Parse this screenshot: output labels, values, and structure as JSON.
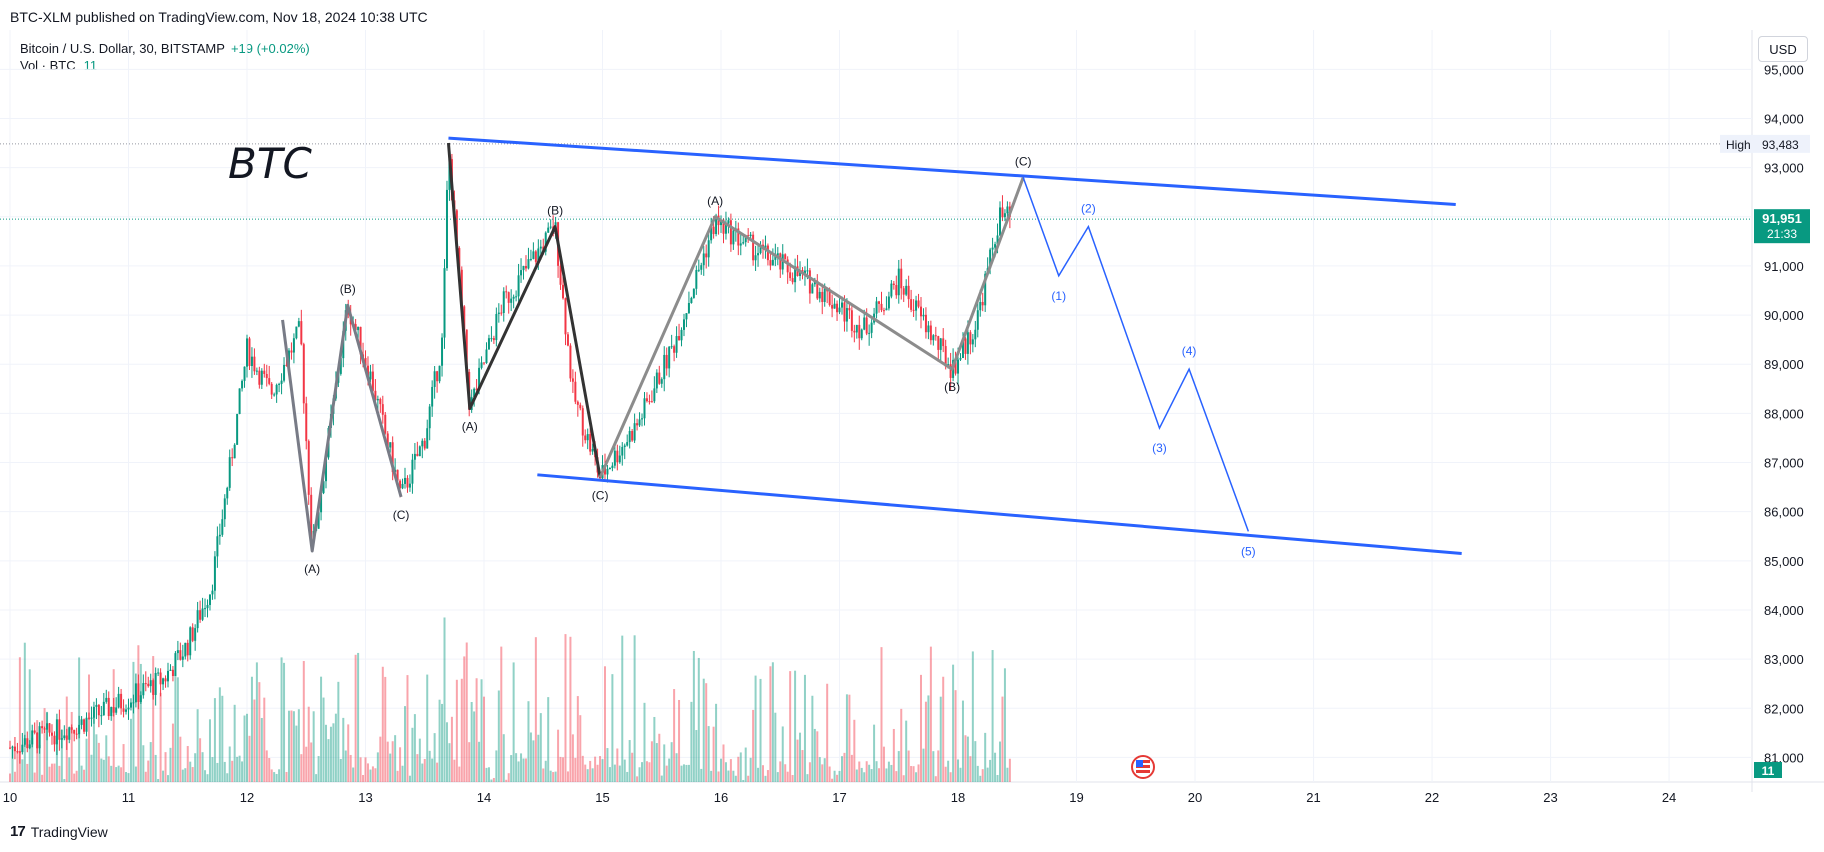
{
  "header": {
    "published": "BTC-XLM published on TradingView.com, Nov 18, 2024 10:38 UTC"
  },
  "legend": {
    "symbol": "Bitcoin / U.S. Dollar, 30, BITSTAMP",
    "change": "+19 (+0.02%)",
    "volume_label": "Vol · BTC",
    "volume_value": "11"
  },
  "currency_button": "USD",
  "footer": {
    "brand": "TradingView",
    "logo": "17"
  },
  "markers": {
    "high_label": "High",
    "high_value": "93,483",
    "last_price": "91,951",
    "countdown": "21:33",
    "volume_badge": "11"
  },
  "annotation_text": "BTC",
  "colors": {
    "bull": "#089981",
    "bear": "#f23645",
    "channel": "#2962ff",
    "wave": "#131722",
    "projection": "#2962ff"
  },
  "chart_data": {
    "type": "candlestick",
    "title": "",
    "x_tick_labels": [
      "10",
      "11",
      "12",
      "13",
      "14",
      "15",
      "16",
      "17",
      "18",
      "19",
      "20",
      "21",
      "22",
      "23",
      "24"
    ],
    "y_tick_labels": [
      "95,000",
      "94,000",
      "93,000",
      "92,000",
      "91,000",
      "90,000",
      "89,000",
      "88,000",
      "87,000",
      "86,000",
      "85,000",
      "84,000",
      "83,000",
      "82,000",
      "81,000"
    ],
    "ylim": [
      80500,
      95800
    ],
    "xlim": [
      10,
      24.7
    ],
    "grid": true,
    "price_path": [
      [
        10.0,
        81200
      ],
      [
        10.6,
        81700
      ],
      [
        11.0,
        82200
      ],
      [
        11.3,
        82600
      ],
      [
        11.5,
        83300
      ],
      [
        11.7,
        84500
      ],
      [
        11.85,
        86800
      ],
      [
        12.0,
        89300
      ],
      [
        12.2,
        88400
      ],
      [
        12.45,
        89700
      ],
      [
        12.55,
        85200
      ],
      [
        12.85,
        90200
      ],
      [
        13.05,
        88700
      ],
      [
        13.3,
        86300
      ],
      [
        13.5,
        87500
      ],
      [
        13.65,
        89500
      ],
      [
        13.7,
        93400
      ],
      [
        13.88,
        88100
      ],
      [
        14.15,
        90200
      ],
      [
        14.6,
        91800
      ],
      [
        14.75,
        88400
      ],
      [
        14.98,
        86700
      ],
      [
        15.3,
        87800
      ],
      [
        15.6,
        89400
      ],
      [
        15.95,
        91900
      ],
      [
        16.3,
        91300
      ],
      [
        16.8,
        90600
      ],
      [
        17.2,
        89700
      ],
      [
        17.5,
        90700
      ],
      [
        17.95,
        88900
      ],
      [
        18.15,
        89800
      ],
      [
        18.35,
        92000
      ],
      [
        18.45,
        91950
      ]
    ],
    "elliott_waves": [
      {
        "points": [
          [
            12.3,
            89900
          ],
          [
            12.55,
            85200
          ],
          [
            12.85,
            90200
          ],
          [
            13.3,
            86300
          ]
        ],
        "labels": [
          [
            "(A)",
            "below"
          ],
          [
            "(B)",
            "above"
          ],
          [
            "(C)",
            "below"
          ]
        ],
        "color": "#787b86"
      },
      {
        "points": [
          [
            13.7,
            93500
          ],
          [
            13.88,
            88100
          ],
          [
            14.6,
            91800
          ],
          [
            14.98,
            86700
          ]
        ],
        "labels": [
          [
            "(A)",
            "below"
          ],
          [
            "(B)",
            "above"
          ],
          [
            "(C)",
            "below"
          ]
        ],
        "color": "#333333"
      },
      {
        "points": [
          [
            14.98,
            86700
          ],
          [
            15.95,
            92000
          ],
          [
            17.95,
            88900
          ],
          [
            18.55,
            92800
          ]
        ],
        "labels": [
          [
            "(A)",
            "above"
          ],
          [
            "(B)",
            "below"
          ],
          [
            "(C)",
            "above"
          ]
        ],
        "color": "#8c8c8c"
      }
    ],
    "projection": {
      "points": [
        [
          18.55,
          92800
        ],
        [
          18.85,
          90800
        ],
        [
          19.1,
          91800
        ],
        [
          19.7,
          87700
        ],
        [
          19.95,
          88900
        ],
        [
          20.45,
          85600
        ]
      ],
      "labels": [
        "(1)",
        "(2)",
        "(3)",
        "(4)",
        "(5)"
      ]
    },
    "channel": {
      "upper": [
        [
          13.7,
          93600
        ],
        [
          22.2,
          92250
        ]
      ],
      "lower": [
        [
          14.45,
          86750
        ],
        [
          22.25,
          85150
        ]
      ]
    },
    "reference_lines": {
      "high": 93483,
      "last": 91951
    },
    "volume": {
      "ylim": [
        0,
        40
      ]
    }
  }
}
